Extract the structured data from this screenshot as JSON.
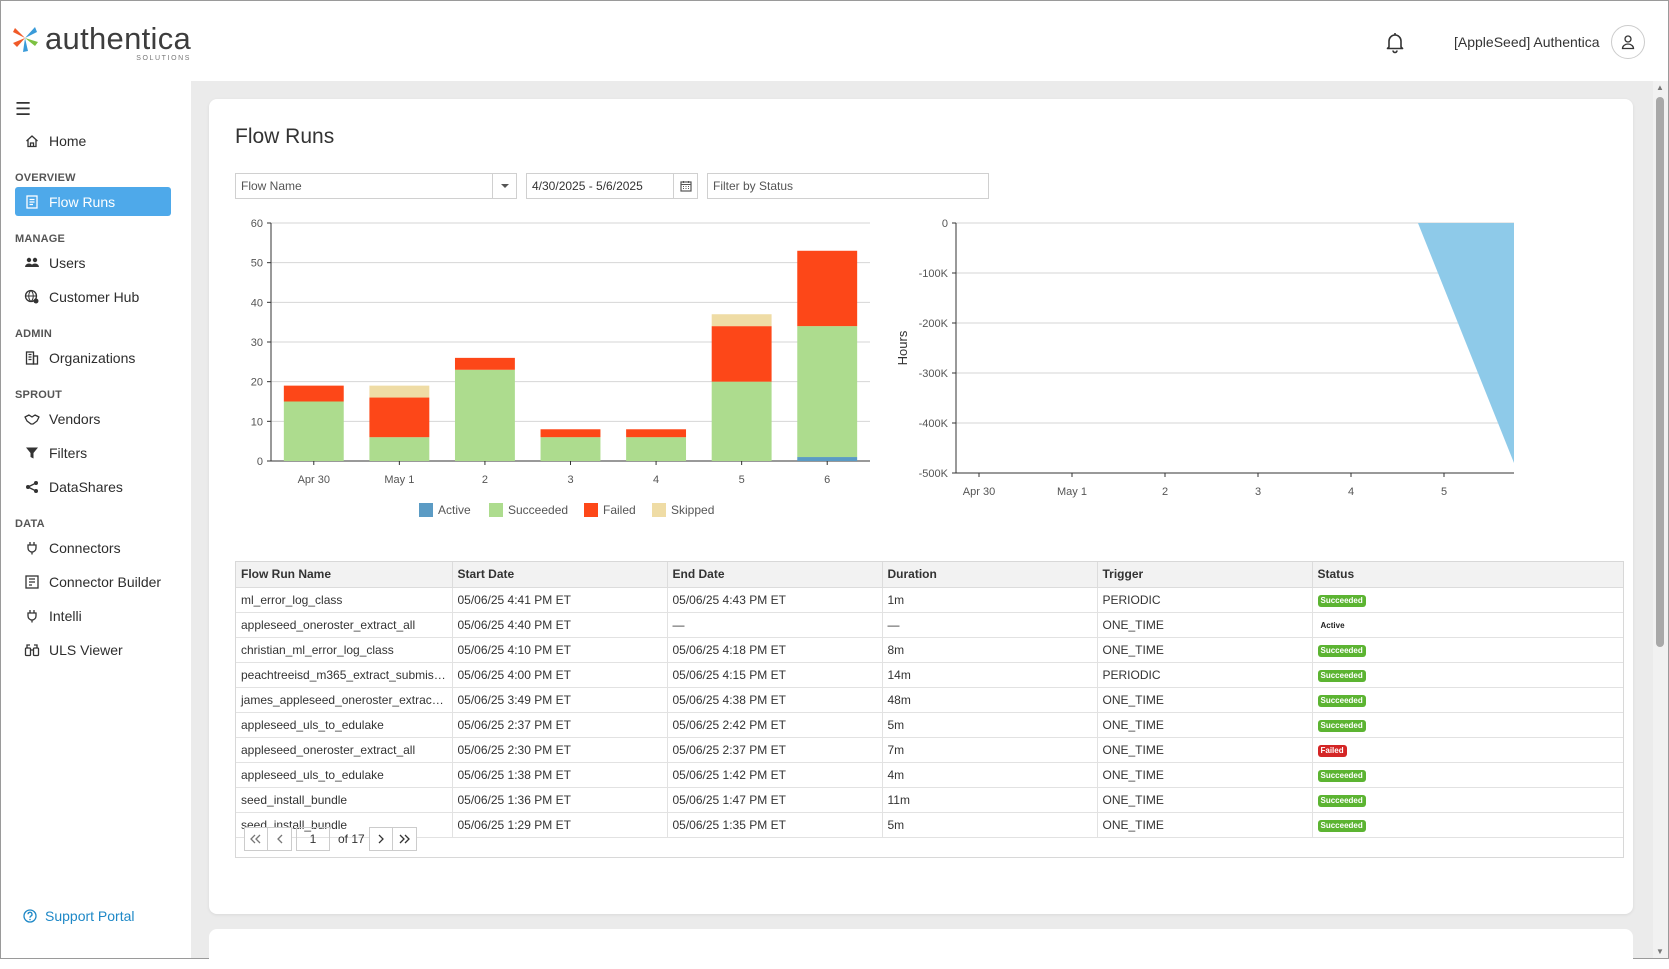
{
  "brand": {
    "name": "authentica",
    "sub": "SOLUTIONS"
  },
  "header": {
    "org_name": "[AppleSeed] Authentica",
    "bell_icon": "bell-icon",
    "avatar_icon": "user-icon"
  },
  "sidebar": {
    "home": "Home",
    "sections": {
      "overview": "OVERVIEW",
      "manage": "MANAGE",
      "admin": "ADMIN",
      "sprout": "SPROUT",
      "data": "DATA"
    },
    "items": {
      "flow_runs": "Flow Runs",
      "users": "Users",
      "customer_hub": "Customer Hub",
      "organizations": "Organizations",
      "vendors": "Vendors",
      "filters": "Filters",
      "datashares": "DataShares",
      "connectors": "Connectors",
      "connector_builder": "Connector Builder",
      "intelli": "Intelli",
      "uls_viewer": "ULS Viewer"
    },
    "support": "Support Portal",
    "active_color": "#4ea9ea"
  },
  "page": {
    "title": "Flow Runs"
  },
  "filters": {
    "flow_name_placeholder": "Flow Name",
    "date_range": "4/30/2025 - 5/6/2025",
    "status_placeholder": "Filter by Status"
  },
  "chart_data": [
    {
      "type": "bar",
      "stacked": true,
      "categories": [
        "Apr 30",
        "May 1",
        "2",
        "3",
        "4",
        "5",
        "6"
      ],
      "series": [
        {
          "name": "Active",
          "color": "#5b9bc4",
          "values": [
            0,
            0,
            0,
            0,
            0,
            0,
            1
          ]
        },
        {
          "name": "Succeeded",
          "color": "#addc8e",
          "values": [
            15,
            6,
            23,
            6,
            6,
            20,
            33
          ]
        },
        {
          "name": "Failed",
          "color": "#fd4718",
          "values": [
            4,
            10,
            3,
            2,
            2,
            14,
            19
          ]
        },
        {
          "name": "Skipped",
          "color": "#efdca5",
          "values": [
            0,
            3,
            0,
            0,
            0,
            3,
            0
          ]
        }
      ],
      "ylim": [
        0,
        60
      ],
      "yticks": [
        "0",
        "10",
        "20",
        "30",
        "40",
        "50",
        "60"
      ],
      "grid": true,
      "legend": "bottom"
    },
    {
      "type": "area",
      "x": [
        "Apr 30",
        "May 1",
        "2",
        "3",
        "4",
        "5"
      ],
      "ylabel": "Hours",
      "ylim": [
        -500000,
        0
      ],
      "yticks": [
        "0",
        "-100K",
        "-200K",
        "-300K",
        "-400K",
        "-500K"
      ],
      "color": "#8ecae9",
      "grid": true
    }
  ],
  "table": {
    "columns": [
      "Flow Run Name",
      "Start Date",
      "End Date",
      "Duration",
      "Trigger",
      "Status"
    ],
    "rows": [
      [
        "ml_error_log_class",
        "05/06/25 4:41 PM ET",
        "05/06/25 4:43 PM ET",
        "1m",
        "PERIODIC",
        "Succeeded"
      ],
      [
        "appleseed_oneroster_extract_all",
        "05/06/25 4:40 PM ET",
        "—",
        "—",
        "ONE_TIME",
        "Active"
      ],
      [
        "christian_ml_error_log_class",
        "05/06/25 4:10 PM ET",
        "05/06/25 4:18 PM ET",
        "8m",
        "ONE_TIME",
        "Succeeded"
      ],
      [
        "peachtreeisd_m365_extract_submiss...",
        "05/06/25 4:00 PM ET",
        "05/06/25 4:15 PM ET",
        "14m",
        "PERIODIC",
        "Succeeded"
      ],
      [
        "james_appleseed_oneroster_extract_...",
        "05/06/25 3:49 PM ET",
        "05/06/25 4:38 PM ET",
        "48m",
        "ONE_TIME",
        "Succeeded"
      ],
      [
        "appleseed_uls_to_edulake",
        "05/06/25 2:37 PM ET",
        "05/06/25 2:42 PM ET",
        "5m",
        "ONE_TIME",
        "Succeeded"
      ],
      [
        "appleseed_oneroster_extract_all",
        "05/06/25 2:30 PM ET",
        "05/06/25 2:37 PM ET",
        "7m",
        "ONE_TIME",
        "Failed"
      ],
      [
        "appleseed_uls_to_edulake",
        "05/06/25 1:38 PM ET",
        "05/06/25 1:42 PM ET",
        "4m",
        "ONE_TIME",
        "Succeeded"
      ],
      [
        "seed_install_bundle",
        "05/06/25 1:36 PM ET",
        "05/06/25 1:47 PM ET",
        "11m",
        "ONE_TIME",
        "Succeeded"
      ],
      [
        "seed_install_bundle",
        "05/06/25 1:29 PM ET",
        "05/06/25 1:35 PM ET",
        "5m",
        "ONE_TIME",
        "Succeeded"
      ]
    ]
  },
  "pager": {
    "page": "1",
    "of_label": "of 17"
  }
}
